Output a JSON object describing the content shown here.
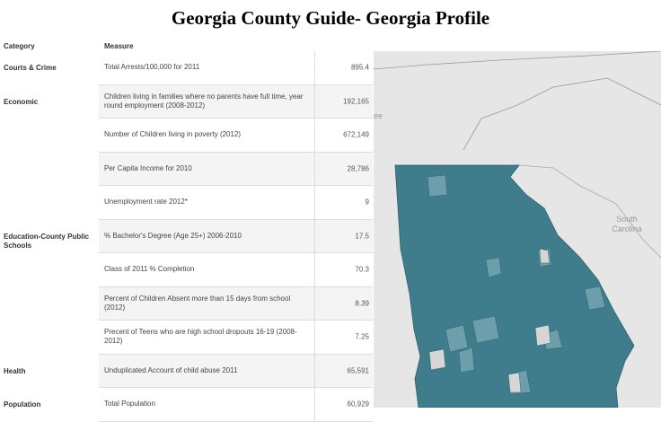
{
  "header": {
    "title": "Georgia  County  Guide-  Georgia  Profile"
  },
  "table": {
    "columns": [
      "Category",
      "Measure"
    ],
    "groups": [
      {
        "category": "Courts & Crime",
        "rows": [
          {
            "measure": "Total Arrests/100,000 for 2011",
            "value": "895.4"
          }
        ]
      },
      {
        "category": "Economic",
        "rows": [
          {
            "measure": "Children living in families where no parents have full time, year round employment (2008-2012)",
            "value": "192,165"
          },
          {
            "measure": "Number of Children living in poverty (2012)",
            "value": "672,149"
          },
          {
            "measure": "Per Capita Income for 2010",
            "value": "28,786"
          },
          {
            "measure": "Unemployment rate 2012*",
            "value": "9"
          }
        ]
      },
      {
        "category": "Education-County Public Schools",
        "rows": [
          {
            "measure": "% Bachelor's Degree (Age 25+) 2006-2010",
            "value": "17.5"
          },
          {
            "measure": "Class of 2011 % Completion",
            "value": "70.3"
          },
          {
            "measure": "Percent of Children Absent more than 15 days from school (2012)",
            "value": "8.39"
          },
          {
            "measure": "Precent of Teens who are high school dropouts 16-19 (2008-2012)",
            "value": "7.25"
          }
        ]
      },
      {
        "category": "Health",
        "rows": [
          {
            "measure": "Unduplicated Account of child abuse 2011",
            "value": "65,591"
          }
        ]
      },
      {
        "category": "Population",
        "rows": [
          {
            "measure": "Total Population",
            "value": "60,929"
          }
        ]
      }
    ]
  },
  "map": {
    "labels": [
      "ee",
      "South",
      "Carolina"
    ]
  }
}
